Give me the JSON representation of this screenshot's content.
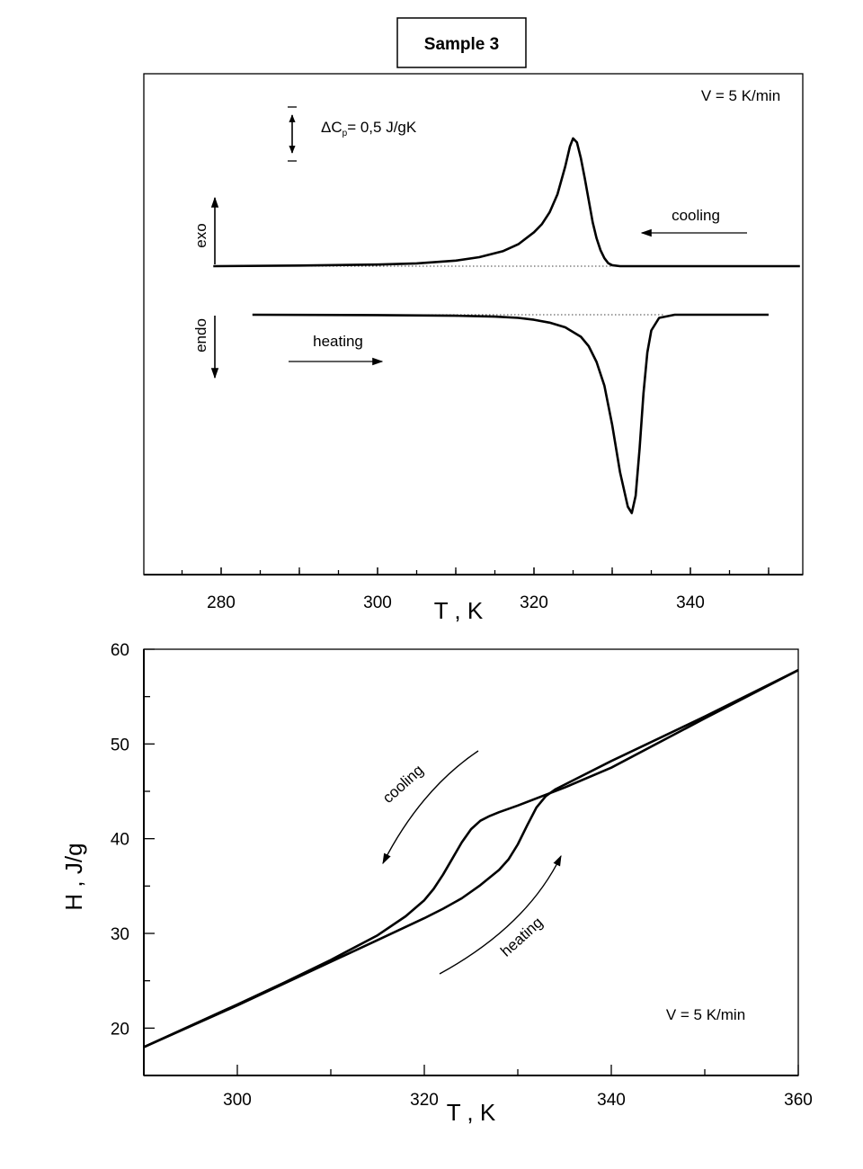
{
  "title": "Sample 3",
  "chart_data": [
    {
      "type": "line",
      "title": "Sample 3",
      "xlabel": "T , K",
      "ylabel": "",
      "xlim": [
        270,
        354
      ],
      "x_ticks": [
        280,
        300,
        320,
        340
      ],
      "rate_label": "V = 5 K/min",
      "scale_bar_label": "ΔCp= 0,5 J/gK",
      "scale_bar_value": 0.5,
      "scale_bar_unit": "J/gK",
      "exo_label": "exo",
      "endo_label": "endo",
      "series": [
        {
          "name": "cooling",
          "peak_T": 325,
          "range": [
            279,
            354
          ],
          "x": [
            279,
            290,
            300,
            305,
            310,
            313,
            316,
            318,
            320,
            321,
            322,
            323,
            324,
            324.6,
            325,
            325.5,
            326,
            326.5,
            327,
            327.5,
            328,
            328.5,
            329,
            329.5,
            330,
            331,
            335,
            354
          ],
          "y": [
            0,
            0.003,
            0.008,
            0.014,
            0.028,
            0.045,
            0.075,
            0.11,
            0.17,
            0.21,
            0.27,
            0.36,
            0.5,
            0.6,
            0.64,
            0.62,
            0.54,
            0.44,
            0.33,
            0.22,
            0.14,
            0.08,
            0.04,
            0.015,
            0.005,
            0,
            0,
            0
          ]
        },
        {
          "name": "heating",
          "peak_T": 332.5,
          "range": [
            284,
            350
          ],
          "x": [
            284,
            300,
            310,
            315,
            318,
            320,
            322,
            324,
            326,
            327,
            328,
            329,
            330,
            331,
            332,
            332.5,
            333,
            333.5,
            334,
            334.5,
            335,
            336,
            338,
            350
          ],
          "y": [
            0,
            -0.002,
            -0.006,
            -0.012,
            -0.02,
            -0.032,
            -0.05,
            -0.08,
            -0.14,
            -0.2,
            -0.3,
            -0.45,
            -0.7,
            -1.0,
            -1.22,
            -1.26,
            -1.15,
            -0.85,
            -0.5,
            -0.24,
            -0.1,
            -0.02,
            0,
            0
          ]
        }
      ]
    },
    {
      "type": "line",
      "xlabel": "T , K",
      "ylabel": "H , J/g",
      "xlim": [
        290,
        360
      ],
      "ylim": [
        15,
        60
      ],
      "x_ticks": [
        300,
        320,
        340,
        360
      ],
      "y_ticks": [
        20,
        30,
        40,
        50,
        60
      ],
      "rate_label": "V = 5 K/min",
      "series": [
        {
          "name": "cooling",
          "x": [
            290,
            300,
            305,
            310,
            315,
            318,
            320,
            321,
            322,
            323,
            324,
            325,
            326,
            327,
            328,
            330,
            335,
            340,
            350,
            360
          ],
          "y": [
            18,
            22.5,
            24.8,
            27.2,
            29.8,
            31.8,
            33.5,
            34.7,
            36.2,
            37.9,
            39.6,
            41,
            41.9,
            42.4,
            42.8,
            43.5,
            45.4,
            47.5,
            52.7,
            57.8
          ]
        },
        {
          "name": "heating",
          "x": [
            290,
            300,
            310,
            315,
            320,
            322,
            324,
            326,
            328,
            329,
            330,
            331,
            332,
            333,
            334,
            335,
            340,
            350,
            360
          ],
          "y": [
            18,
            22.4,
            27,
            29.3,
            31.6,
            32.6,
            33.7,
            35.1,
            36.7,
            37.8,
            39.4,
            41.4,
            43.3,
            44.5,
            45.2,
            45.7,
            48.2,
            52.9,
            57.8
          ]
        }
      ]
    }
  ]
}
